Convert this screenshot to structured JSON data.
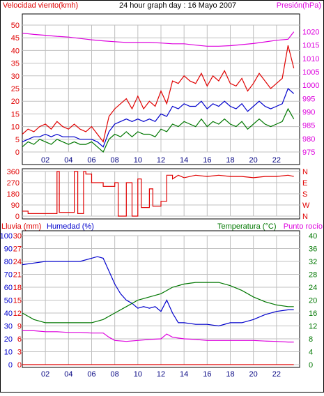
{
  "page": {
    "background": "#ffffff",
    "border_color": "#000000"
  },
  "colors": {
    "red": "#e00000",
    "magenta": "#dd00dd",
    "blue": "#0000cc",
    "green": "#007700",
    "grid": "#c0c0c0"
  },
  "chart_data": [
    {
      "type": "line",
      "title": "24 hour graph day : 16 Mayo 2007",
      "left_axis_label": "Velocidad viento(kmh)",
      "right_axis_label": "Presión(hPa)",
      "x_ticks": [
        "02",
        "04",
        "06",
        "08",
        "10",
        "12",
        "14",
        "16",
        "18",
        "20",
        "22"
      ],
      "y_left_ticks": [
        0,
        5,
        10,
        15,
        20,
        25,
        30,
        35,
        40,
        45,
        50
      ],
      "y_right_ticks": [
        975,
        980,
        985,
        990,
        995,
        1000,
        1005,
        1010,
        1015,
        1020
      ],
      "y_left_range": [
        0,
        50
      ],
      "y_right_range": [
        975,
        1022.5
      ],
      "grid": true,
      "series": [
        {
          "color": "#e00000",
          "axis": "left",
          "x": [
            0,
            0.5,
            1,
            1.5,
            2,
            2.5,
            3,
            3.5,
            4,
            4.5,
            5,
            5.5,
            6,
            6.5,
            7,
            7.5,
            8,
            8.5,
            9,
            9.5,
            10,
            10.5,
            11,
            11.5,
            12,
            12.5,
            13,
            13.5,
            14,
            14.5,
            15,
            15.5,
            16,
            16.5,
            17,
            17.5,
            18,
            18.5,
            19,
            19.5,
            20,
            20.5,
            21,
            21.5,
            22,
            22.5,
            23,
            23.5
          ],
          "y": [
            7,
            9,
            8,
            10,
            11,
            9,
            12,
            10,
            9,
            11,
            9,
            8,
            10,
            7,
            4,
            14,
            17,
            19,
            21,
            17,
            22,
            17,
            20,
            18,
            24,
            19,
            28,
            27,
            30,
            28,
            27,
            31,
            26,
            30,
            28,
            32,
            27,
            26,
            29,
            24,
            27,
            31,
            28,
            25,
            27,
            29,
            42,
            33
          ]
        },
        {
          "color": "#0000cc",
          "axis": "left",
          "x": [
            0,
            0.5,
            1,
            1.5,
            2,
            2.5,
            3,
            3.5,
            4,
            4.5,
            5,
            5.5,
            6,
            6.5,
            7,
            7.5,
            8,
            8.5,
            9,
            9.5,
            10,
            10.5,
            11,
            11.5,
            12,
            12.5,
            13,
            13.5,
            14,
            14.5,
            15,
            15.5,
            16,
            16.5,
            17,
            17.5,
            18,
            18.5,
            19,
            19.5,
            20,
            20.5,
            21,
            21.5,
            22,
            22.5,
            23,
            23.5
          ],
          "y": [
            4,
            5,
            6,
            6,
            7,
            6,
            7,
            6,
            6,
            6,
            5,
            5,
            5,
            4,
            2,
            8,
            11,
            12,
            13,
            12,
            13,
            12,
            13,
            12,
            15,
            14,
            18,
            17,
            19,
            18,
            18,
            20,
            17,
            19,
            18,
            20,
            18,
            17,
            19,
            16,
            18,
            20,
            18,
            17,
            18,
            19,
            25,
            23
          ]
        },
        {
          "color": "#007700",
          "axis": "left",
          "x": [
            0,
            0.5,
            1,
            1.5,
            2,
            2.5,
            3,
            3.5,
            4,
            4.5,
            5,
            5.5,
            6,
            6.5,
            7,
            7.5,
            8,
            8.5,
            9,
            9.5,
            10,
            10.5,
            11,
            11.5,
            12,
            12.5,
            13,
            13.5,
            14,
            14.5,
            15,
            15.5,
            16,
            16.5,
            17,
            17.5,
            18,
            18.5,
            19,
            19.5,
            20,
            20.5,
            21,
            21.5,
            22,
            22.5,
            23,
            23.5
          ],
          "y": [
            2,
            4,
            3,
            5,
            4,
            3,
            5,
            4,
            3,
            4,
            3,
            3,
            4,
            2,
            0,
            5,
            7,
            6,
            8,
            6,
            8,
            7,
            7,
            6,
            9,
            8,
            11,
            10,
            12,
            11,
            10,
            13,
            10,
            12,
            11,
            13,
            11,
            10,
            12,
            9,
            11,
            13,
            11,
            10,
            11,
            12,
            17,
            13
          ]
        },
        {
          "color": "#dd00dd",
          "axis": "right",
          "x": [
            0,
            1,
            2,
            3,
            4,
            5,
            6,
            7,
            8,
            9,
            10,
            11,
            12,
            13,
            14,
            15,
            16,
            17,
            18,
            19,
            20,
            21,
            22,
            23,
            23.5
          ],
          "y": [
            1019.5,
            1019,
            1018.7,
            1018.3,
            1018,
            1017.5,
            1017,
            1016.6,
            1016.3,
            1016,
            1016,
            1016,
            1015.8,
            1015.5,
            1015.5,
            1015,
            1014.6,
            1014.6,
            1014.8,
            1015.2,
            1015.6,
            1016.2,
            1016.8,
            1017.2,
            1020
          ]
        }
      ]
    },
    {
      "type": "line",
      "y_left_ticks": [
        0,
        90,
        180,
        270,
        360
      ],
      "y_right_ticks": [
        "N",
        "W",
        "S",
        "E",
        "N"
      ],
      "y_range": [
        0,
        360
      ],
      "grid": true,
      "series": [
        {
          "color": "#e00000",
          "x": [
            0,
            0.5,
            0.5,
            3,
            3,
            3.2,
            3.2,
            4.5,
            4.5,
            4.8,
            4.8,
            5.3,
            5.3,
            5.5,
            5.5,
            6,
            6,
            7,
            7,
            8,
            8,
            8.3,
            8.3,
            9,
            9,
            9.5,
            9.5,
            10,
            10,
            10.3,
            10.3,
            11,
            11,
            11.3,
            11.3,
            12,
            12,
            12.5,
            12.5,
            13,
            13,
            13.5,
            14,
            15,
            16,
            17,
            18,
            19,
            20,
            21,
            22,
            23,
            23.5
          ],
          "y": [
            40,
            40,
            20,
            20,
            360,
            360,
            30,
            30,
            360,
            360,
            20,
            20,
            360,
            360,
            340,
            340,
            270,
            270,
            240,
            240,
            270,
            270,
            0,
            0,
            270,
            270,
            0,
            0,
            300,
            300,
            70,
            70,
            220,
            220,
            80,
            80,
            120,
            120,
            330,
            330,
            300,
            330,
            310,
            330,
            320,
            330,
            320,
            320,
            310,
            320,
            320,
            330,
            320
          ]
        }
      ]
    },
    {
      "type": "line",
      "left_axis_label": "Lluvia (mm)",
      "left_axis_label2": "Humedad (%)",
      "right_axis_label": "Temperatura (°C)",
      "right_axis_label2": "Punto rocío",
      "y_left_ticks": [
        0,
        10,
        20,
        30,
        40,
        50,
        60,
        70,
        80,
        90,
        100
      ],
      "y_rain_ticks": [
        0,
        3,
        6,
        9,
        12,
        15,
        18,
        21,
        24,
        27,
        30
      ],
      "y_right_ticks": [
        0,
        4,
        8,
        12,
        16,
        20,
        24,
        28,
        32,
        36,
        40
      ],
      "y_range": [
        0,
        40
      ],
      "grid": true,
      "series": [
        {
          "color": "#0000cc",
          "x": [
            0,
            1,
            2,
            3,
            4,
            5,
            6,
            6.5,
            7,
            7.5,
            8,
            8.5,
            9,
            9.5,
            10,
            10.5,
            11,
            11.5,
            12,
            12.5,
            13,
            13.5,
            14,
            15,
            16,
            17,
            18,
            19,
            20,
            21,
            22,
            23,
            23.5
          ],
          "y": [
            31,
            31.5,
            32,
            32,
            32,
            32,
            33,
            33.5,
            33,
            29,
            25,
            22,
            20,
            19,
            17.5,
            18,
            17.5,
            18,
            16.5,
            20,
            16,
            13,
            13,
            12.5,
            12.5,
            12,
            13,
            13,
            14,
            15.5,
            16.5,
            17,
            17
          ]
        },
        {
          "color": "#007700",
          "x": [
            0,
            1,
            2,
            3,
            4,
            5,
            6,
            7,
            8,
            9,
            10,
            11,
            12,
            13,
            14,
            15,
            16,
            17,
            18,
            19,
            20,
            21,
            22,
            23,
            23.5
          ],
          "y": [
            16,
            14,
            13,
            13,
            13,
            13,
            13,
            14,
            16,
            18,
            20,
            21,
            22,
            24,
            25,
            25.5,
            25.5,
            25.5,
            24.5,
            23,
            21,
            19.5,
            18.5,
            18,
            18
          ]
        },
        {
          "color": "#dd00dd",
          "x": [
            0,
            1,
            2,
            3,
            4,
            5,
            6,
            7,
            7.5,
            8,
            9,
            10,
            11,
            12,
            12.5,
            13,
            14,
            15,
            16,
            17,
            18,
            19,
            20,
            21,
            22,
            23,
            23.5
          ],
          "y": [
            10.5,
            10.5,
            10.2,
            10.2,
            10,
            10,
            9.8,
            9.8,
            8.5,
            7.5,
            7.2,
            7.5,
            7.8,
            8,
            9.5,
            8.5,
            8,
            7.8,
            7.5,
            7.5,
            7.5,
            7.5,
            7.5,
            7.3,
            7.2,
            7,
            7
          ]
        },
        {
          "color": "#e00000",
          "x": [
            0,
            23.5
          ],
          "y": [
            0,
            0
          ]
        }
      ]
    }
  ]
}
